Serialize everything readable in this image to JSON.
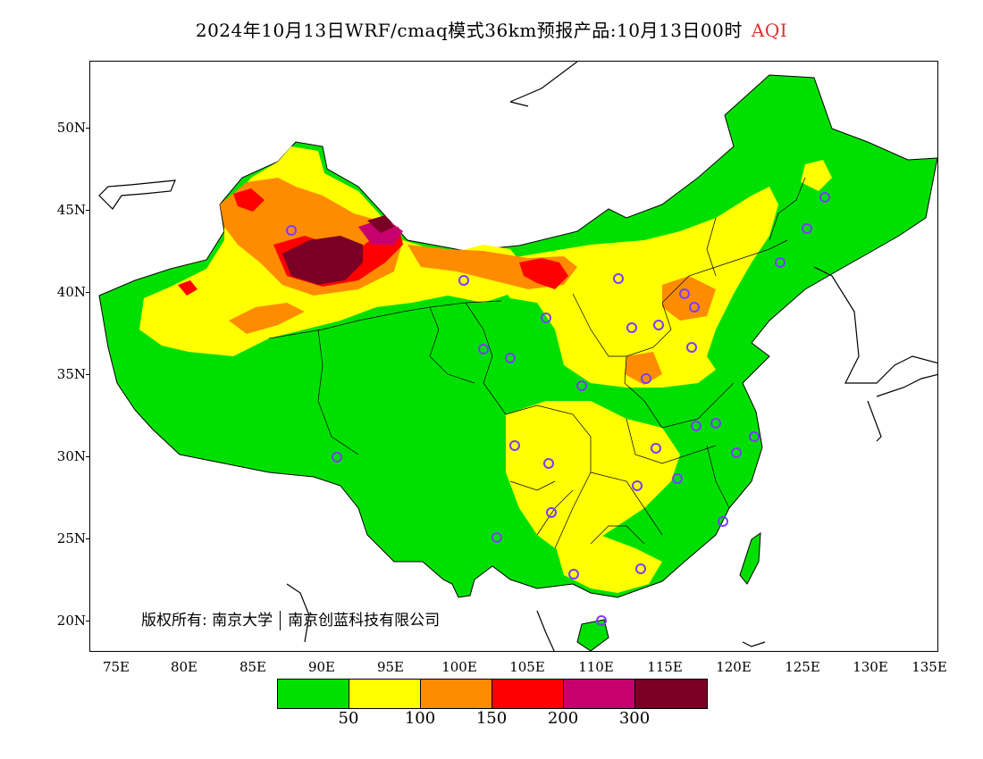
{
  "title": {
    "main": "2024年10月13日WRF/cmaq模式36km预报产品:10月13日00时",
    "variable": "AQI"
  },
  "axes": {
    "lat_labels": [
      "50N",
      "45N",
      "40N",
      "35N",
      "30N",
      "25N",
      "20N"
    ],
    "lon_labels": [
      "75E",
      "80E",
      "85E",
      "90E",
      "95E",
      "100E",
      "105E",
      "110E",
      "115E",
      "120E",
      "125E",
      "130E",
      "135E"
    ]
  },
  "copyright": {
    "prefix": "版权所有: 南京大学",
    "second": "南京创蓝科技有限公司"
  },
  "legend": {
    "colors": [
      "#00e000",
      "#ffff00",
      "#ff8c00",
      "#ff0000",
      "#c8006e",
      "#7a0026"
    ],
    "labels": [
      "50",
      "100",
      "150",
      "200",
      "300"
    ]
  },
  "colors": {
    "good": "#00e000",
    "moderate": "#ffff00",
    "sensitive": "#ff8c00",
    "unhealthy": "#ff0000",
    "very_unhealthy": "#c8006e",
    "hazardous": "#7a0026",
    "station_marker": "#7a3cff"
  }
}
